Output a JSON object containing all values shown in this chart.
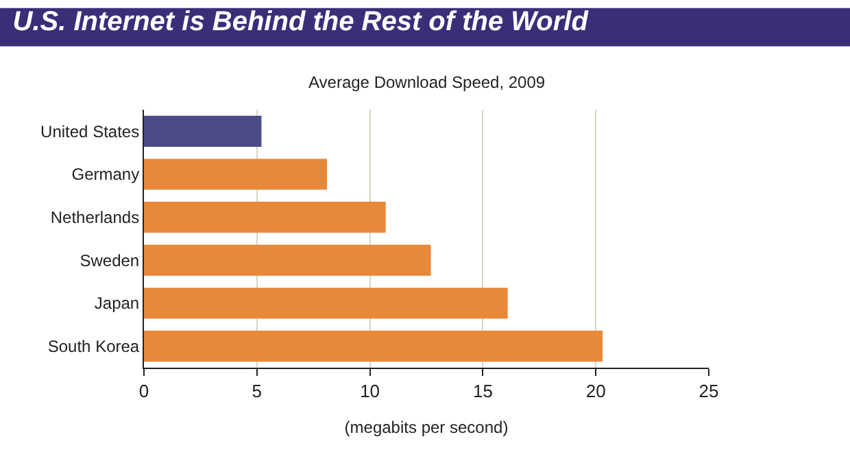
{
  "chart_data": {
    "type": "bar",
    "orientation": "horizontal",
    "title": "U.S. Internet is Behind the Rest of the World",
    "subtitle": "Average Download Speed, 2009",
    "xlabel": "(megabits per second)",
    "categories": [
      "United States",
      "Germany",
      "Netherlands",
      "Sweden",
      "Japan",
      "South Korea"
    ],
    "values": [
      5.2,
      8.1,
      10.7,
      12.7,
      16.1,
      20.3
    ],
    "colors": [
      "#4b4b85",
      "#e8883a",
      "#e8883a",
      "#e8883a",
      "#e8883a",
      "#e8883a"
    ],
    "xlim": [
      0,
      25
    ],
    "xticks": [
      0,
      5,
      10,
      15,
      20,
      25
    ],
    "grid": "x"
  }
}
